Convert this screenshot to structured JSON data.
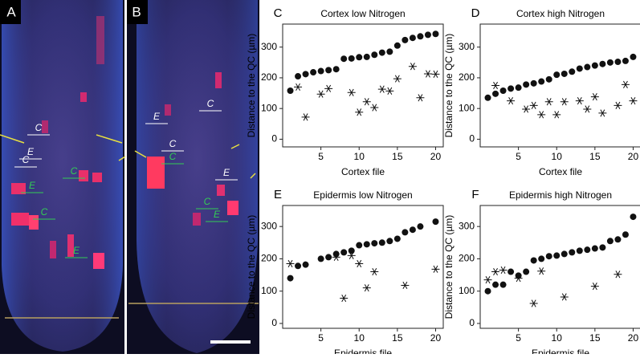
{
  "images": [
    {
      "label": "A",
      "annotations": [
        {
          "text": "C",
          "color": "#ffffff"
        },
        {
          "text": "E",
          "color": "#ffffff"
        },
        {
          "text": "C",
          "color": "#ffffff"
        },
        {
          "text": "C",
          "color": "#33cc55"
        },
        {
          "text": "E",
          "color": "#33cc55"
        },
        {
          "text": "C",
          "color": "#33cc55"
        },
        {
          "text": "E",
          "color": "#33cc55"
        }
      ]
    },
    {
      "label": "B",
      "annotations": [
        {
          "text": "E",
          "color": "#ffffff"
        },
        {
          "text": "C",
          "color": "#ffffff"
        },
        {
          "text": "C",
          "color": "#ffffff"
        },
        {
          "text": "C",
          "color": "#33cc55"
        },
        {
          "text": "E",
          "color": "#ffffff"
        },
        {
          "text": "C",
          "color": "#33cc55"
        },
        {
          "text": "E",
          "color": "#33cc55"
        }
      ]
    }
  ],
  "chart_data": [
    {
      "type": "scatter",
      "panel": "C",
      "title": "Cortex low Nitrogen",
      "xlabel": "Cortex file",
      "ylabel": "Distance to the QC (µm)",
      "xlim": [
        0,
        21
      ],
      "ylim": [
        -25,
        375
      ],
      "xticks": [
        5,
        10,
        15,
        20
      ],
      "yticks": [
        0,
        100,
        200,
        300
      ],
      "series": [
        {
          "marker": "dot",
          "color": "#111111",
          "x": [
            1,
            2,
            3,
            4,
            5,
            6,
            7,
            8,
            9,
            10,
            11,
            12,
            13,
            14,
            15,
            16,
            17,
            18,
            19,
            20
          ],
          "values": [
            158,
            205,
            212,
            218,
            222,
            225,
            228,
            262,
            263,
            267,
            268,
            275,
            282,
            285,
            305,
            323,
            330,
            335,
            340,
            343
          ]
        },
        {
          "marker": "star",
          "color": "#111111",
          "x": [
            2,
            3,
            5,
            6,
            9,
            10,
            11,
            12,
            13,
            14,
            15,
            17,
            18,
            19,
            20
          ],
          "values": [
            170,
            72,
            147,
            165,
            152,
            88,
            122,
            103,
            163,
            157,
            197,
            237,
            135,
            213,
            212
          ]
        }
      ]
    },
    {
      "type": "scatter",
      "panel": "D",
      "title": "Cortex high Nitrogen",
      "xlabel": "Cortex file",
      "ylabel": "Distance to the QC (µm)",
      "xlim": [
        0,
        21
      ],
      "ylim": [
        -25,
        375
      ],
      "xticks": [
        5,
        10,
        15,
        20
      ],
      "yticks": [
        0,
        100,
        200,
        300
      ],
      "series": [
        {
          "marker": "dot",
          "color": "#111111",
          "x": [
            1,
            2,
            3,
            4,
            5,
            6,
            7,
            8,
            9,
            10,
            11,
            12,
            13,
            14,
            15,
            16,
            17,
            18,
            19,
            20
          ],
          "values": [
            135,
            148,
            158,
            165,
            168,
            178,
            182,
            188,
            195,
            210,
            213,
            220,
            230,
            235,
            240,
            245,
            250,
            252,
            255,
            268
          ]
        },
        {
          "marker": "star",
          "color": "#111111",
          "x": [
            2,
            4,
            6,
            7,
            8,
            9,
            10,
            11,
            13,
            14,
            15,
            16,
            18,
            19,
            20
          ],
          "values": [
            175,
            125,
            98,
            110,
            80,
            122,
            80,
            122,
            125,
            98,
            138,
            85,
            110,
            178,
            125
          ]
        }
      ]
    },
    {
      "type": "scatter",
      "panel": "E",
      "title": "Epidermis low Nitrogen",
      "xlabel": "Epidermis file",
      "ylabel": "Distance to the QC (µm)",
      "xlim": [
        0,
        21
      ],
      "ylim": [
        -15,
        365
      ],
      "xticks": [
        5,
        10,
        15,
        20
      ],
      "yticks": [
        0,
        100,
        200,
        300
      ],
      "series": [
        {
          "marker": "dot",
          "color": "#111111",
          "x": [
            1,
            2,
            3,
            5,
            6,
            7,
            8,
            9,
            10,
            11,
            12,
            13,
            14,
            15,
            16,
            17,
            18,
            20
          ],
          "values": [
            140,
            178,
            182,
            200,
            205,
            215,
            220,
            225,
            242,
            245,
            248,
            250,
            255,
            262,
            282,
            290,
            300,
            315
          ]
        },
        {
          "marker": "star",
          "color": "#111111",
          "x": [
            1,
            7,
            8,
            9,
            10,
            11,
            12,
            16,
            20
          ],
          "values": [
            185,
            205,
            78,
            210,
            185,
            110,
            160,
            118,
            168
          ]
        }
      ]
    },
    {
      "type": "scatter",
      "panel": "F",
      "title": "Epidermis high Nitrogen",
      "xlabel": "Epidermis file",
      "ylabel": "Distance to the QC (µm)",
      "xlim": [
        0,
        21
      ],
      "ylim": [
        -15,
        365
      ],
      "xticks": [
        5,
        10,
        15,
        20
      ],
      "yticks": [
        0,
        100,
        200,
        300
      ],
      "series": [
        {
          "marker": "dot",
          "color": "#111111",
          "x": [
            1,
            2,
            3,
            4,
            5,
            6,
            7,
            8,
            9,
            10,
            11,
            12,
            13,
            14,
            15,
            16,
            17,
            18,
            19,
            20
          ],
          "values": [
            100,
            120,
            120,
            160,
            148,
            160,
            195,
            200,
            208,
            210,
            215,
            220,
            225,
            228,
            232,
            235,
            255,
            260,
            275,
            330
          ]
        },
        {
          "marker": "star",
          "color": "#111111",
          "x": [
            1,
            2,
            3,
            5,
            7,
            8,
            11,
            15,
            18
          ],
          "values": [
            135,
            160,
            165,
            140,
            62,
            162,
            82,
            115,
            152
          ]
        }
      ]
    }
  ]
}
